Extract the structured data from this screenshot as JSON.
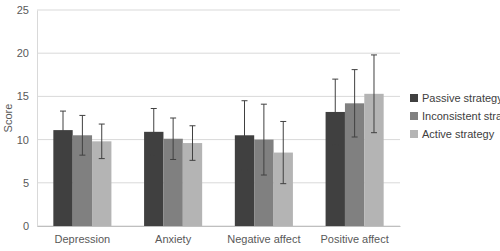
{
  "chart_data": {
    "type": "bar",
    "y_label": "Score",
    "categories": [
      "Depression",
      "Anxiety",
      "Negative affect",
      "Positive affect"
    ],
    "series": [
      {
        "name": "Passive strategy",
        "color": "#404040",
        "values": [
          11.1,
          10.9,
          10.5,
          13.2
        ],
        "errors": [
          2.2,
          2.7,
          4.0,
          3.8
        ]
      },
      {
        "name": "Inconsistent strategy",
        "color": "#808080",
        "values": [
          10.5,
          10.1,
          10.0,
          14.2
        ],
        "errors": [
          2.3,
          2.4,
          4.1,
          3.9
        ]
      },
      {
        "name": "Active strategy",
        "color": "#b4b4b4",
        "values": [
          9.8,
          9.6,
          8.5,
          15.3
        ],
        "errors": [
          2.0,
          2.0,
          3.6,
          4.5
        ]
      }
    ],
    "ylim": [
      0,
      25
    ],
    "yticks": [
      0,
      5,
      10,
      15,
      20,
      25
    ],
    "grid": true,
    "legend": "right"
  }
}
